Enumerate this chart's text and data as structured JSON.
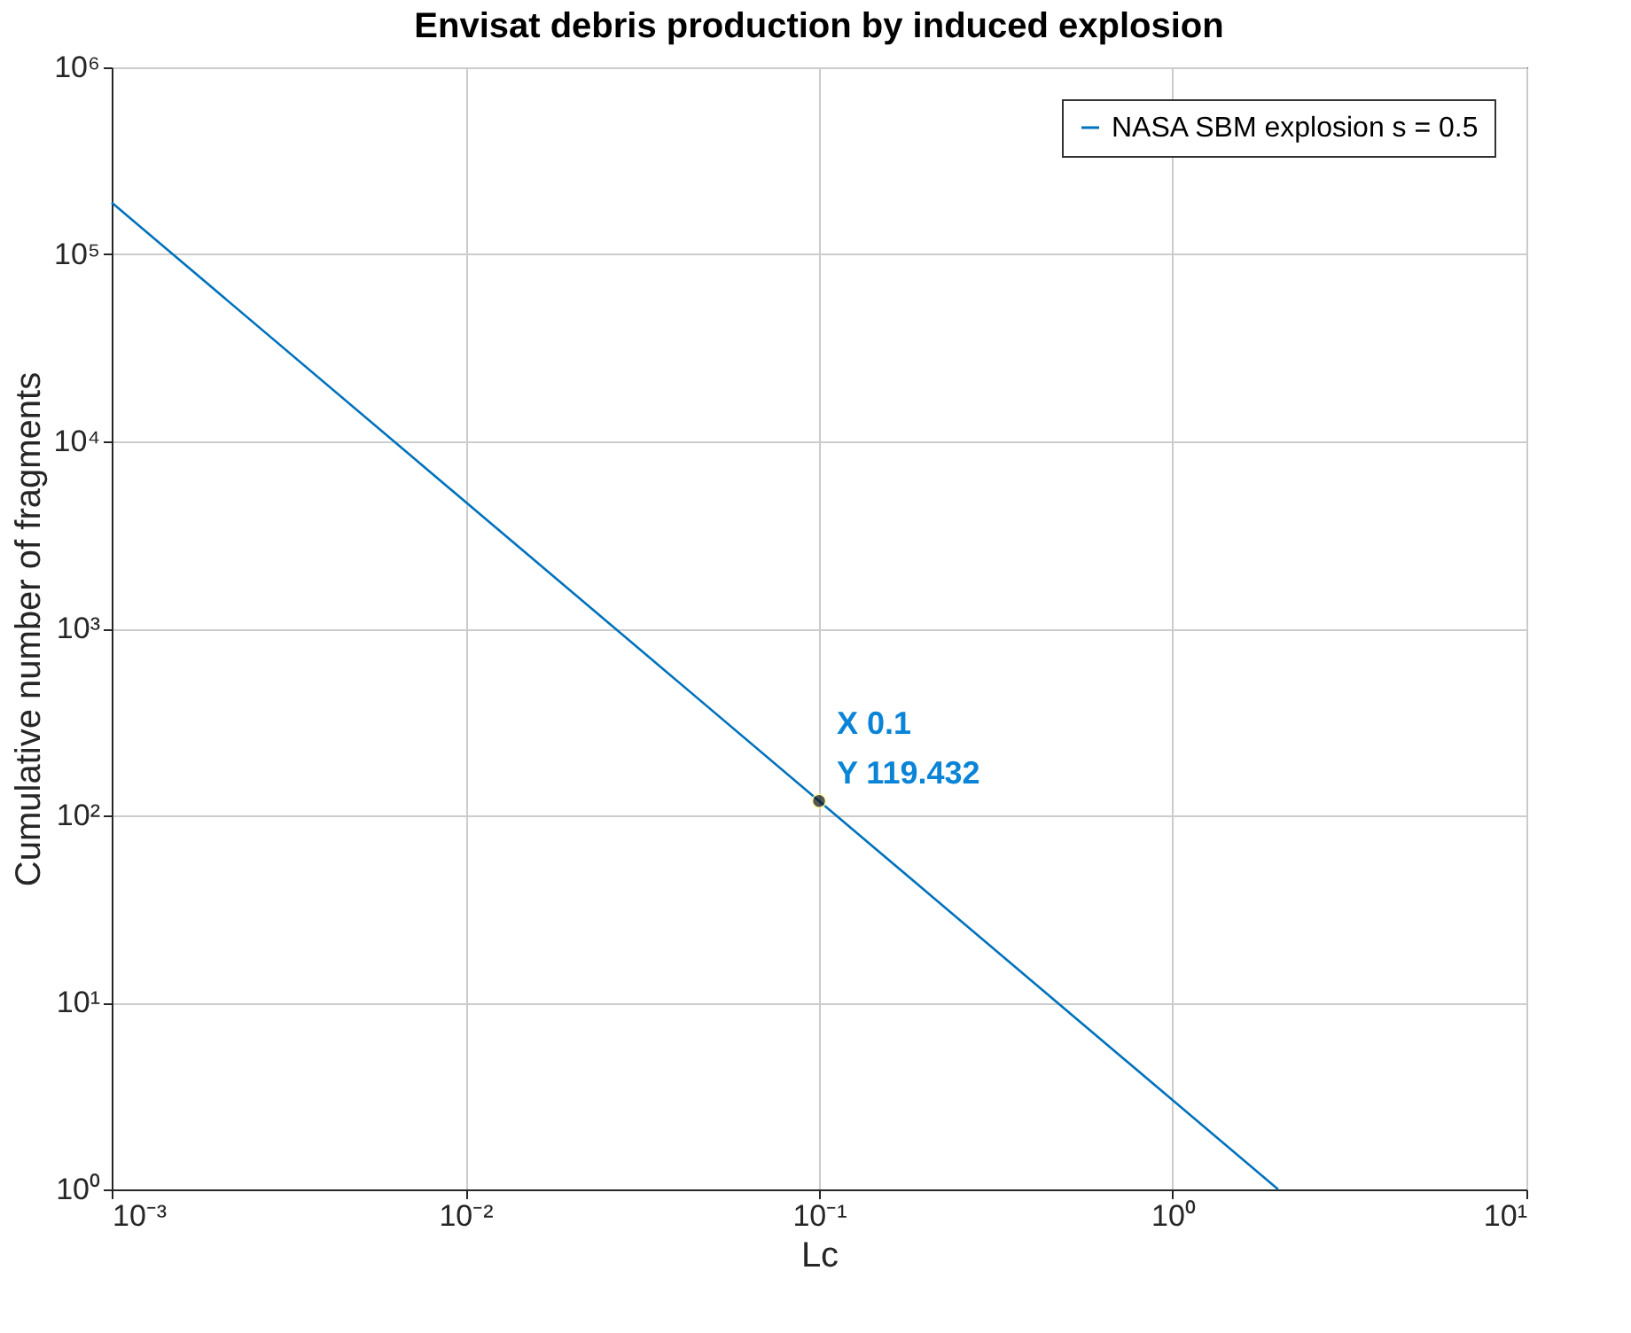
{
  "chart_data": {
    "type": "line",
    "title": "Envisat debris production by induced explosion",
    "xlabel": "Lc",
    "ylabel": "Cumulative number of fragments",
    "x": [
      0.001,
      0.1,
      1.987
    ],
    "series": [
      {
        "name": "NASA SBM explosion s = 0.5",
        "color": "#0072bd",
        "values": [
          189287,
          119.432,
          1
        ]
      }
    ],
    "log": "xy",
    "grid": true,
    "legend": "top right",
    "xlim": [
      0.001,
      10
    ],
    "xticks": [
      {
        "value": 0.001,
        "label": "10⁻³"
      },
      {
        "value": 0.01,
        "label": "10⁻²"
      },
      {
        "value": 0.1,
        "label": "10⁻¹"
      },
      {
        "value": 1,
        "label": "10⁰"
      },
      {
        "value": 10,
        "label": "10¹"
      }
    ],
    "ylim": [
      1,
      1000000
    ],
    "yticks": [
      {
        "value": 1,
        "label": "10⁰"
      },
      {
        "value": 10,
        "label": "10¹"
      },
      {
        "value": 100,
        "label": "10²"
      },
      {
        "value": 1000,
        "label": "10³"
      },
      {
        "value": 10000,
        "label": "10⁴"
      },
      {
        "value": 100000,
        "label": "10⁵"
      },
      {
        "value": 1000000,
        "label": "10⁶"
      }
    ],
    "annotations": [
      {
        "text": "X 0.1\nY 119.432",
        "x": 0.1,
        "y": 119.432
      }
    ]
  }
}
